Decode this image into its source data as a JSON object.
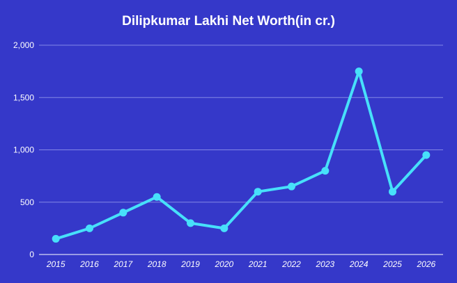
{
  "chart_data": {
    "type": "line",
    "title": "Dilipkumar Lakhi Net Worth(in cr.)",
    "xlabel": "",
    "ylabel": "",
    "categories": [
      "2015",
      "2016",
      "2017",
      "2018",
      "2019",
      "2020",
      "2021",
      "2022",
      "2023",
      "2024",
      "2025",
      "2026"
    ],
    "series": [
      {
        "values": [
          150,
          250,
          400,
          550,
          300,
          250,
          600,
          650,
          800,
          1750,
          600,
          950
        ]
      }
    ],
    "ylim": [
      0,
      2000
    ],
    "yticks": [
      0,
      500,
      1000,
      1500,
      2000
    ],
    "ytick_labels": [
      "0",
      "500",
      "1,000",
      "1,500",
      "2,000"
    ],
    "grid": true,
    "legend": "none",
    "colors": {
      "background": "#3538c9",
      "line": "#47e0fa",
      "grid": "#8487e6",
      "text": "#ffffff"
    }
  }
}
